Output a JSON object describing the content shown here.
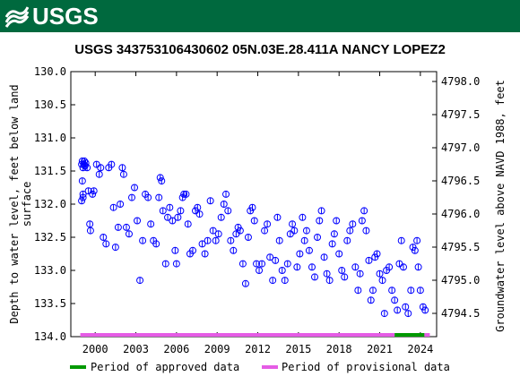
{
  "header": {
    "logo_text": "USGS"
  },
  "chart_data": {
    "type": "scatter",
    "title": "USGS 343753106430602 05N.03E.28.411A NANCY LOPEZ2",
    "ylabel": "Depth to water level, feet below land surface",
    "ylabel_lines": [
      "Depth to water level, feet below land",
      "surface"
    ],
    "y2label": "Groundwater level above NAVD 1988, feet",
    "xlim": [
      1998.2,
      2025.2
    ],
    "ylim": [
      134.0,
      130.0
    ],
    "y2lim": [
      4794.0,
      4798.2
    ],
    "y2_offset": 4798.0,
    "x_ticks": [
      2000,
      2003,
      2006,
      2009,
      2012,
      2015,
      2018,
      2021,
      2024
    ],
    "y_ticks": [
      130.0,
      130.5,
      131.0,
      131.5,
      132.0,
      132.5,
      133.0,
      133.5,
      134.0
    ],
    "y2_ticks": [
      4798.0,
      4797.5,
      4797.0,
      4796.5,
      4796.0,
      4795.5,
      4795.0,
      4794.5
    ],
    "marker_color": "#0000ff",
    "points": [
      [
        1999.0,
        131.4
      ],
      [
        1999.05,
        131.35
      ],
      [
        1999.1,
        131.45
      ],
      [
        1999.15,
        131.4
      ],
      [
        1999.2,
        131.35
      ],
      [
        1999.25,
        131.42
      ],
      [
        1999.3,
        131.38
      ],
      [
        1999.05,
        131.65
      ],
      [
        1999.1,
        131.85
      ],
      [
        1999.0,
        131.95
      ],
      [
        1999.1,
        131.9
      ],
      [
        1999.4,
        131.45
      ],
      [
        1999.5,
        131.8
      ],
      [
        1999.6,
        132.3
      ],
      [
        1999.65,
        132.4
      ],
      [
        1999.8,
        131.85
      ],
      [
        1999.9,
        131.8
      ],
      [
        2000.1,
        131.4
      ],
      [
        2000.3,
        131.55
      ],
      [
        2000.4,
        131.45
      ],
      [
        2000.6,
        132.5
      ],
      [
        2000.8,
        132.6
      ],
      [
        2001.0,
        131.45
      ],
      [
        2001.2,
        131.4
      ],
      [
        2001.35,
        132.05
      ],
      [
        2001.5,
        132.65
      ],
      [
        2001.7,
        132.35
      ],
      [
        2001.85,
        132.0
      ],
      [
        2002.0,
        131.45
      ],
      [
        2002.1,
        131.55
      ],
      [
        2002.3,
        132.35
      ],
      [
        2002.5,
        132.45
      ],
      [
        2002.7,
        131.9
      ],
      [
        2002.9,
        131.75
      ],
      [
        2003.1,
        132.25
      ],
      [
        2003.3,
        133.15
      ],
      [
        2003.5,
        132.55
      ],
      [
        2003.7,
        131.85
      ],
      [
        2003.9,
        131.9
      ],
      [
        2004.1,
        132.3
      ],
      [
        2004.3,
        132.55
      ],
      [
        2004.5,
        132.6
      ],
      [
        2004.7,
        131.9
      ],
      [
        2004.8,
        131.6
      ],
      [
        2004.9,
        131.65
      ],
      [
        2005.0,
        132.1
      ],
      [
        2005.2,
        132.9
      ],
      [
        2005.35,
        132.2
      ],
      [
        2005.5,
        132.05
      ],
      [
        2005.7,
        132.25
      ],
      [
        2005.9,
        132.7
      ],
      [
        2006.0,
        132.9
      ],
      [
        2006.1,
        132.2
      ],
      [
        2006.3,
        132.1
      ],
      [
        2006.45,
        131.9
      ],
      [
        2006.55,
        131.85
      ],
      [
        2006.7,
        131.85
      ],
      [
        2006.85,
        132.3
      ],
      [
        2007.0,
        132.75
      ],
      [
        2007.2,
        132.7
      ],
      [
        2007.4,
        132.1
      ],
      [
        2007.55,
        132.05
      ],
      [
        2007.7,
        132.15
      ],
      [
        2007.9,
        132.6
      ],
      [
        2008.1,
        132.75
      ],
      [
        2008.3,
        132.55
      ],
      [
        2008.5,
        131.95
      ],
      [
        2008.7,
        132.4
      ],
      [
        2008.9,
        132.55
      ],
      [
        2009.1,
        132.45
      ],
      [
        2009.3,
        132.2
      ],
      [
        2009.5,
        132.0
      ],
      [
        2009.65,
        131.85
      ],
      [
        2009.8,
        132.1
      ],
      [
        2010.0,
        132.55
      ],
      [
        2010.2,
        132.7
      ],
      [
        2010.4,
        132.45
      ],
      [
        2010.55,
        132.35
      ],
      [
        2010.7,
        132.4
      ],
      [
        2010.9,
        132.9
      ],
      [
        2011.1,
        133.2
      ],
      [
        2011.3,
        132.5
      ],
      [
        2011.45,
        132.1
      ],
      [
        2011.6,
        132.05
      ],
      [
        2011.75,
        132.25
      ],
      [
        2011.9,
        132.9
      ],
      [
        2012.1,
        133.0
      ],
      [
        2012.3,
        132.9
      ],
      [
        2012.5,
        132.4
      ],
      [
        2012.7,
        132.3
      ],
      [
        2012.9,
        132.8
      ],
      [
        2013.1,
        133.15
      ],
      [
        2013.3,
        132.85
      ],
      [
        2013.45,
        132.2
      ],
      [
        2013.6,
        132.55
      ],
      [
        2013.8,
        133.0
      ],
      [
        2014.0,
        133.15
      ],
      [
        2014.2,
        132.9
      ],
      [
        2014.4,
        132.45
      ],
      [
        2014.55,
        132.3
      ],
      [
        2014.7,
        132.4
      ],
      [
        2014.9,
        132.95
      ],
      [
        2015.1,
        132.75
      ],
      [
        2015.3,
        132.2
      ],
      [
        2015.45,
        132.55
      ],
      [
        2015.6,
        132.4
      ],
      [
        2015.8,
        132.7
      ],
      [
        2016.0,
        132.95
      ],
      [
        2016.2,
        133.1
      ],
      [
        2016.4,
        132.5
      ],
      [
        2016.55,
        132.25
      ],
      [
        2016.7,
        132.1
      ],
      [
        2016.9,
        132.8
      ],
      [
        2017.1,
        133.05
      ],
      [
        2017.3,
        133.15
      ],
      [
        2017.5,
        132.6
      ],
      [
        2017.65,
        132.45
      ],
      [
        2017.8,
        132.25
      ],
      [
        2018.0,
        132.75
      ],
      [
        2018.2,
        133.0
      ],
      [
        2018.4,
        133.1
      ],
      [
        2018.6,
        132.55
      ],
      [
        2018.8,
        132.4
      ],
      [
        2019.0,
        132.3
      ],
      [
        2019.2,
        132.95
      ],
      [
        2019.4,
        133.3
      ],
      [
        2019.55,
        133.05
      ],
      [
        2019.7,
        132.25
      ],
      [
        2019.85,
        132.1
      ],
      [
        2020.0,
        132.4
      ],
      [
        2020.2,
        132.85
      ],
      [
        2020.35,
        133.45
      ],
      [
        2020.5,
        133.3
      ],
      [
        2020.65,
        132.8
      ],
      [
        2020.8,
        132.75
      ],
      [
        2021.0,
        133.05
      ],
      [
        2021.2,
        133.15
      ],
      [
        2021.35,
        133.65
      ],
      [
        2021.5,
        133.0
      ],
      [
        2021.7,
        132.95
      ],
      [
        2021.9,
        133.3
      ],
      [
        2022.1,
        133.45
      ],
      [
        2022.3,
        133.6
      ],
      [
        2022.45,
        132.9
      ],
      [
        2022.6,
        132.55
      ],
      [
        2022.75,
        132.95
      ],
      [
        2022.9,
        133.55
      ],
      [
        2023.1,
        133.65
      ],
      [
        2023.3,
        133.3
      ],
      [
        2023.45,
        132.65
      ],
      [
        2023.6,
        132.7
      ],
      [
        2023.75,
        132.55
      ],
      [
        2023.85,
        132.95
      ],
      [
        2024.0,
        133.3
      ],
      [
        2024.2,
        133.55
      ],
      [
        2024.35,
        133.6
      ]
    ],
    "legend": {
      "approved_label": "Period of approved data",
      "approved_color": "#009900",
      "provisional_label": "Period of provisional data",
      "provisional_color": "#e55ce5"
    },
    "periods": {
      "provisional": [
        1998.9,
        2022.1
      ],
      "approved": [
        2022.1,
        2024.3
      ],
      "provisional_tail": [
        2024.3,
        2024.7
      ]
    }
  }
}
